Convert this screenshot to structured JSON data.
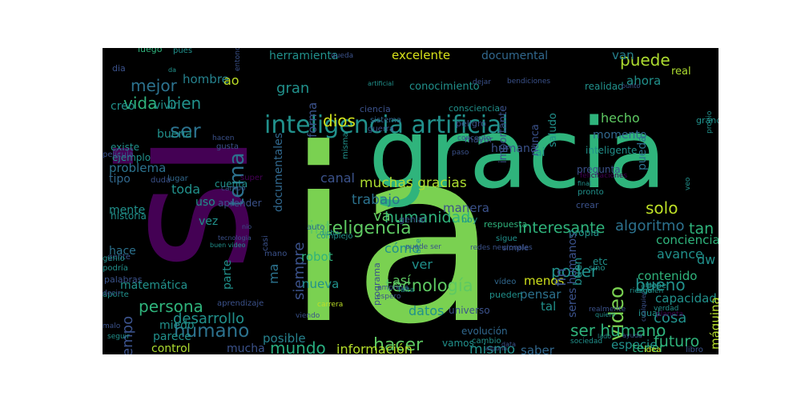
{
  "image": {
    "kind": "word-cloud",
    "background": "#000000",
    "palette": [
      "#440154",
      "#3b528b",
      "#21918c",
      "#2fb47c",
      "#5ec962",
      "#7ad151",
      "#fde725"
    ]
  },
  "words": [
    {
      "text": "ia",
      "color": "#7ad151"
    },
    {
      "text": "si",
      "color": "#440154"
    },
    {
      "text": "gracia",
      "color": "#2fb47c"
    },
    {
      "text": "inteligencia artificial",
      "color": "#21918c"
    },
    {
      "text": "inteligencia",
      "color": "#5ec962"
    },
    {
      "text": "humanidad",
      "color": "#2fb47c"
    },
    {
      "text": "solo",
      "color": "#bddf26"
    },
    {
      "text": "tecnología",
      "color": "#5ec962"
    },
    {
      "text": "video",
      "color": "#7ad151"
    },
    {
      "text": "humano",
      "color": "#2c728e"
    },
    {
      "text": "hacer",
      "color": "#5ec962"
    },
    {
      "text": "tema",
      "color": "#2c728e"
    },
    {
      "text": "ser",
      "color": "#2c728e"
    },
    {
      "text": "ser humano",
      "color": "#2fb47c"
    },
    {
      "text": "interesante",
      "color": "#2fb47c"
    },
    {
      "text": "puede",
      "color": "#addc30"
    },
    {
      "text": "poder",
      "color": "#21918c"
    },
    {
      "text": "persona",
      "color": "#2fb47c"
    },
    {
      "text": "mundo",
      "color": "#28ae80"
    },
    {
      "text": "siempre",
      "color": "#3b528b"
    },
    {
      "text": "futuro",
      "color": "#2fb47c"
    },
    {
      "text": "bueno",
      "color": "#21918c"
    },
    {
      "text": "cosa",
      "color": "#21918c"
    },
    {
      "text": "tiempo",
      "color": "#3b528b"
    },
    {
      "text": "desarrollo",
      "color": "#21918c"
    },
    {
      "text": "información",
      "color": "#b5de2b"
    },
    {
      "text": "mismo",
      "color": "#21918c"
    },
    {
      "text": "mejor",
      "color": "#2c728e"
    },
    {
      "text": "vida",
      "color": "#2fb47c"
    },
    {
      "text": "bien",
      "color": "#21918c"
    },
    {
      "text": "hombre",
      "color": "#26828e"
    },
    {
      "text": "ao",
      "color": "#bddf26"
    },
    {
      "text": "herramienta",
      "color": "#21918c"
    },
    {
      "text": "excelente",
      "color": "#d8e219"
    },
    {
      "text": "documental",
      "color": "#31688e"
    },
    {
      "text": "van",
      "color": "#26828e"
    },
    {
      "text": "ahora",
      "color": "#21918c"
    },
    {
      "text": "gran",
      "color": "#21918c"
    },
    {
      "text": "dios",
      "color": "#d0e11c"
    },
    {
      "text": "hecho",
      "color": "#5ec962"
    },
    {
      "text": "momento",
      "color": "#31688e"
    },
    {
      "text": "pueda",
      "color": "#2c728e"
    },
    {
      "text": "tan",
      "color": "#2fb47c"
    },
    {
      "text": "algoritmo",
      "color": "#2c728e"
    },
    {
      "text": "avance",
      "color": "#21918c"
    },
    {
      "text": "conciencia",
      "color": "#2fb47c"
    },
    {
      "text": "capacidad",
      "color": "#21918c"
    },
    {
      "text": "dw",
      "color": "#21918c"
    },
    {
      "text": "contenido",
      "color": "#2fb47c"
    },
    {
      "text": "muchas gracias",
      "color": "#addc30"
    },
    {
      "text": "trabajo",
      "color": "#2c728e"
    },
    {
      "text": "va",
      "color": "#5ec962"
    },
    {
      "text": "cómo",
      "color": "#21918c"
    },
    {
      "text": "robot",
      "color": "#2fb47c"
    },
    {
      "text": "ver",
      "color": "#21918c"
    },
    {
      "text": "así",
      "color": "#5ec962"
    },
    {
      "text": "ma",
      "color": "#2c728e"
    },
    {
      "text": "nueva",
      "color": "#21918c"
    },
    {
      "text": "menos",
      "color": "#d0e11c"
    },
    {
      "text": "pensar",
      "color": "#2c728e"
    },
    {
      "text": "tal",
      "color": "#21918c"
    },
    {
      "text": "datos",
      "color": "#21918c"
    },
    {
      "text": "saber",
      "color": "#31688e"
    },
    {
      "text": "especie",
      "color": "#21918c"
    },
    {
      "text": "tener",
      "color": "#2fb47c"
    },
    {
      "text": "máquina",
      "color": "#b5de2b"
    },
    {
      "text": "control",
      "color": "#addc30"
    },
    {
      "text": "mucha",
      "color": "#3b528b"
    },
    {
      "text": "posible",
      "color": "#26828e"
    },
    {
      "text": "miedo",
      "color": "#21918c"
    },
    {
      "text": "parece",
      "color": "#21918c"
    },
    {
      "text": "matemática",
      "color": "#21918c"
    },
    {
      "text": "problema",
      "color": "#2c728e"
    },
    {
      "text": "toda",
      "color": "#21918c"
    },
    {
      "text": "tipo",
      "color": "#31688e"
    },
    {
      "text": "mente",
      "color": "#21918c"
    },
    {
      "text": "uso",
      "color": "#21918c"
    },
    {
      "text": "vez",
      "color": "#21918c"
    },
    {
      "text": "hace",
      "color": "#2c728e"
    },
    {
      "text": "parte",
      "color": "#21918c"
    },
    {
      "text": "creo",
      "color": "#21918c"
    },
    {
      "text": "vivir",
      "color": "#21918c"
    },
    {
      "text": "buena",
      "color": "#21918c"
    },
    {
      "text": "existe",
      "color": "#21918c"
    },
    {
      "text": "ejemplo",
      "color": "#21918c"
    },
    {
      "text": "canal",
      "color": "#3b528b"
    },
    {
      "text": "documentales",
      "color": "#31688e"
    },
    {
      "text": "forma",
      "color": "#3b528b"
    },
    {
      "text": "manera",
      "color": "#3b528b"
    },
    {
      "text": "ai",
      "color": "#21918c"
    },
    {
      "text": "humana",
      "color": "#3b528b"
    },
    {
      "text": "nunca",
      "color": "#3b528b"
    },
    {
      "text": "inteligente",
      "color": "#21918c"
    },
    {
      "text": "conocimiento",
      "color": "#21918c"
    },
    {
      "text": "real",
      "color": "#addc30"
    },
    {
      "text": "realidad",
      "color": "#21918c"
    },
    {
      "text": "saludo",
      "color": "#21918c"
    },
    {
      "text": "importante",
      "color": "#3b528b"
    },
    {
      "text": "pregunta",
      "color": "#3b528b"
    },
    {
      "text": "consciencia",
      "color": "#21918c"
    },
    {
      "text": "peligro",
      "color": "#3b528b"
    },
    {
      "text": "mayor",
      "color": "#3b528b"
    },
    {
      "text": "ciencia",
      "color": "#3b528b"
    },
    {
      "text": "sistema",
      "color": "#31688e"
    },
    {
      "text": "misma",
      "color": "#21918c"
    },
    {
      "text": "guerra",
      "color": "#3b528b"
    },
    {
      "text": "aprender",
      "color": "#3b528b"
    },
    {
      "text": "cuenta",
      "color": "#21918c"
    },
    {
      "text": "lugar",
      "color": "#31688e"
    },
    {
      "text": "historia",
      "color": "#21918c"
    },
    {
      "text": "pues",
      "color": "#21918c"
    },
    {
      "text": "luego",
      "color": "#2fb47c"
    },
    {
      "text": "dia",
      "color": "#3b528b"
    },
    {
      "text": "da",
      "color": "#21918c"
    },
    {
      "text": "entonces",
      "color": "#3b528b"
    },
    {
      "text": "queda",
      "color": "#3b528b"
    },
    {
      "text": "felicitaciones",
      "color": "#440154"
    },
    {
      "text": "pronto",
      "color": "#21918c"
    },
    {
      "text": "crear",
      "color": "#3b528b"
    },
    {
      "text": "final",
      "color": "#21918c"
    },
    {
      "text": "propia",
      "color": "#21918c"
    },
    {
      "text": "etc",
      "color": "#21918c"
    },
    {
      "text": "sino",
      "color": "#21918c"
    },
    {
      "text": "igual",
      "color": "#21918c"
    },
    {
      "text": "buen",
      "color": "#21918c"
    },
    {
      "text": "fin",
      "color": "#3b528b"
    },
    {
      "text": "seres humanos",
      "color": "#3b528b"
    },
    {
      "text": "vídeo",
      "color": "#31688e"
    },
    {
      "text": "pueden",
      "color": "#21918c"
    },
    {
      "text": "universo",
      "color": "#3b528b"
    },
    {
      "text": "evolución",
      "color": "#31688e"
    },
    {
      "text": "vamos",
      "color": "#21918c"
    },
    {
      "text": "cambio",
      "color": "#21918c"
    },
    {
      "text": "sociedad",
      "color": "#21918c"
    },
    {
      "text": "genial",
      "color": "#3b528b"
    },
    {
      "text": "hoy",
      "color": "#21918c"
    },
    {
      "text": "empresa",
      "color": "#3b528b"
    },
    {
      "text": "respuesta",
      "color": "#2fb47c"
    },
    {
      "text": "sigue",
      "color": "#21918c"
    },
    {
      "text": "simple",
      "color": "#3b528b"
    },
    {
      "text": "auto",
      "color": "#31688e"
    },
    {
      "text": "complejo",
      "color": "#21918c"
    },
    {
      "text": "programa",
      "color": "#3b528b"
    },
    {
      "text": "falta",
      "color": "#21918c"
    },
    {
      "text": "espero",
      "color": "#3b528b"
    },
    {
      "text": "dice",
      "color": "#21918c"
    },
    {
      "text": "puede ser",
      "color": "#3b528b"
    },
    {
      "text": "redes neuronales",
      "color": "#3b528b"
    },
    {
      "text": "dejar",
      "color": "#3b528b"
    },
    {
      "text": "bendiciones",
      "color": "#3b528b"
    },
    {
      "text": "punto",
      "color": "#3b528b"
    },
    {
      "text": "paso",
      "color": "#3b528b"
    },
    {
      "text": "concepto",
      "color": "#3b528b"
    },
    {
      "text": "hacen",
      "color": "#3b528b"
    },
    {
      "text": "gusta",
      "color": "#3b528b"
    },
    {
      "text": "duda",
      "color": "#3b528b"
    },
    {
      "text": "super",
      "color": "#440154"
    },
    {
      "text": "campo",
      "color": "#3b528b"
    },
    {
      "text": "película",
      "color": "#3b528b"
    },
    {
      "text": "gente",
      "color": "#3b528b"
    },
    {
      "text": "podría",
      "color": "#21918c"
    },
    {
      "text": "genio",
      "color": "#21918c"
    },
    {
      "text": "palabras",
      "color": "#3b528b"
    },
    {
      "text": "aporte",
      "color": "#21918c"
    },
    {
      "text": "decir",
      "color": "#3b528b"
    },
    {
      "text": "seguir",
      "color": "#21918c"
    },
    {
      "text": "malo",
      "color": "#3b528b"
    },
    {
      "text": "aprendizaje",
      "color": "#3b528b"
    },
    {
      "text": "casi",
      "color": "#3b528b"
    },
    {
      "text": "mano",
      "color": "#3b528b"
    },
    {
      "text": "viendo",
      "color": "#3b528b"
    },
    {
      "text": "carrera",
      "color": "#bddf26"
    },
    {
      "text": "dicho",
      "color": "#21918c"
    },
    {
      "text": "alguna",
      "color": "#3b528b"
    },
    {
      "text": "data",
      "color": "#3b528b"
    },
    {
      "text": "idea",
      "color": "#d0e11c"
    },
    {
      "text": "libro",
      "color": "#3b528b"
    },
    {
      "text": "alguien",
      "color": "#21918c"
    },
    {
      "text": "riesgo",
      "color": "#21918c"
    },
    {
      "text": "debe",
      "color": "#21918c"
    },
    {
      "text": "planeta",
      "color": "#440154"
    },
    {
      "text": "verdad",
      "color": "#21918c"
    },
    {
      "text": "cualquier",
      "color": "#3b528b"
    },
    {
      "text": "veo",
      "color": "#21918c"
    },
    {
      "text": "grande",
      "color": "#21918c"
    },
    {
      "text": "propio",
      "color": "#21918c"
    },
    {
      "text": "realmente",
      "color": "#3b528b"
    },
    {
      "text": "amor",
      "color": "#21918c"
    },
    {
      "text": "quiero",
      "color": "#21918c"
    },
    {
      "text": "lado",
      "color": "#21918c"
    },
    {
      "text": "ayuda",
      "color": "#3b528b"
    },
    {
      "text": "buen video",
      "color": "#21918c"
    },
    {
      "text": "tecnologia",
      "color": "#3b528b"
    },
    {
      "text": "nio",
      "color": "#3b528b"
    },
    {
      "text": "artificial",
      "color": "#21918c"
    }
  ]
}
